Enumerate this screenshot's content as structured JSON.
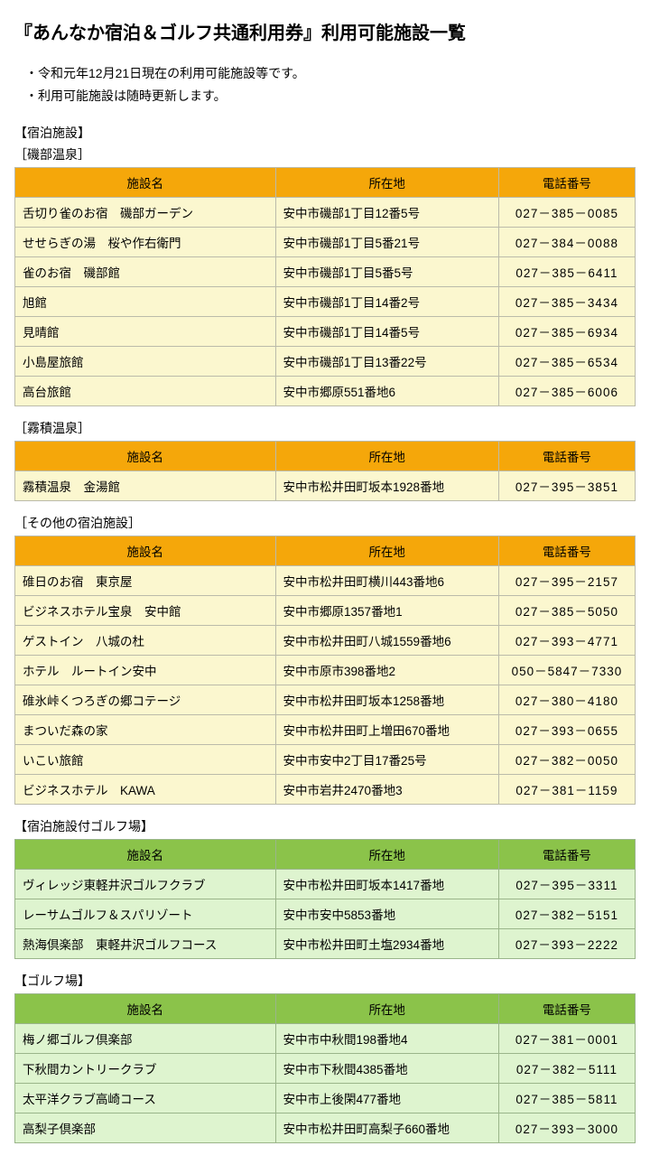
{
  "title": "『あんなか宿泊＆ゴルフ共通利用券』利用可能施設一覧",
  "notes": [
    "・令和元年12月21日現在の利用可能施設等です。",
    "・利用可能施設は随時更新します。"
  ],
  "columns": {
    "name": "施設名",
    "addr": "所在地",
    "phone": "電話番号"
  },
  "themes": {
    "yellow": {
      "header_bg": "#f5a70a",
      "row_bg": "#fbf7cf",
      "border": "#bba"
    },
    "green": {
      "header_bg": "#8bc34a",
      "row_bg": "#def4cf",
      "border": "#9ab58a"
    }
  },
  "col_widths": [
    "42%",
    "36%",
    "22%"
  ],
  "sections": [
    {
      "heading": "【宿泊施設】",
      "theme": "yellow",
      "subsections": [
        {
          "subheading": "［磯部温泉］",
          "rows": [
            [
              "舌切り雀のお宿　磯部ガーデン",
              "安中市磯部1丁目12番5号",
              "027－385－0085"
            ],
            [
              "せせらぎの湯　桜や作右衛門",
              "安中市磯部1丁目5番21号",
              "027－384－0088"
            ],
            [
              "雀のお宿　磯部館",
              "安中市磯部1丁目5番5号",
              "027－385－6411"
            ],
            [
              "旭館",
              "安中市磯部1丁目14番2号",
              "027－385－3434"
            ],
            [
              "見晴館",
              "安中市磯部1丁目14番5号",
              "027－385－6934"
            ],
            [
              "小島屋旅館",
              "安中市磯部1丁目13番22号",
              "027－385－6534"
            ],
            [
              "高台旅館",
              "安中市郷原551番地6",
              "027－385－6006"
            ]
          ]
        },
        {
          "subheading": "［霧積温泉］",
          "rows": [
            [
              "霧積温泉　金湯館",
              "安中市松井田町坂本1928番地",
              "027－395－3851"
            ]
          ]
        },
        {
          "subheading": "［その他の宿泊施設］",
          "rows": [
            [
              "碓日のお宿　東京屋",
              "安中市松井田町横川443番地6",
              "027－395－2157"
            ],
            [
              "ビジネスホテル宝泉　安中館",
              "安中市郷原1357番地1",
              "027－385－5050"
            ],
            [
              "ゲストイン　八城の杜",
              "安中市松井田町八城1559番地6",
              "027－393－4771"
            ],
            [
              "ホテル　ルートイン安中",
              "安中市原市398番地2",
              "050－5847－7330"
            ],
            [
              "碓氷峠くつろぎの郷コテージ",
              "安中市松井田町坂本1258番地",
              "027－380－4180"
            ],
            [
              "まついだ森の家",
              "安中市松井田町上増田670番地",
              "027－393－0655"
            ],
            [
              "いこい旅館",
              "安中市安中2丁目17番25号",
              "027－382－0050"
            ],
            [
              "ビジネスホテル　KAWA",
              "安中市岩井2470番地3",
              "027－381－1159"
            ]
          ]
        }
      ]
    },
    {
      "heading": "【宿泊施設付ゴルフ場】",
      "theme": "green",
      "subsections": [
        {
          "rows": [
            [
              "ヴィレッジ東軽井沢ゴルフクラブ",
              "安中市松井田町坂本1417番地",
              "027－395－3311"
            ],
            [
              "レーサムゴルフ＆スパリゾート",
              "安中市安中5853番地",
              "027－382－5151"
            ],
            [
              "熱海倶楽部　東軽井沢ゴルフコース",
              "安中市松井田町土塩2934番地",
              "027－393－2222"
            ]
          ]
        }
      ]
    },
    {
      "heading": "【ゴルフ場】",
      "theme": "green",
      "subsections": [
        {
          "rows": [
            [
              "梅ノ郷ゴルフ倶楽部",
              "安中市中秋間198番地4",
              "027－381－0001"
            ],
            [
              "下秋間カントリークラブ",
              "安中市下秋間4385番地",
              "027－382－5111"
            ],
            [
              "太平洋クラブ高崎コース",
              "安中市上後閑477番地",
              "027－385－5811"
            ],
            [
              "高梨子倶楽部",
              "安中市松井田町高梨子660番地",
              "027－393－3000"
            ]
          ]
        }
      ]
    }
  ]
}
